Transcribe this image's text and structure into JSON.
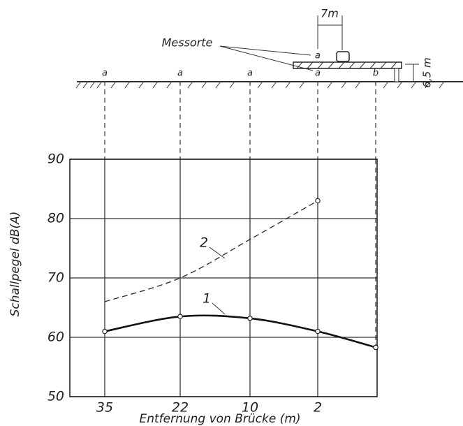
{
  "chart_data": {
    "type": "line",
    "y_label": "Schallpegel dB(A)",
    "x_label": "Entfernung von Brücke (m)",
    "categories": [
      "35",
      "22",
      "10",
      "2",
      null
    ],
    "series": [
      {
        "name": "1",
        "color": "#111111",
        "dashed": false,
        "markers": true,
        "values": [
          61,
          63.5,
          63.2,
          61,
          58.3
        ]
      },
      {
        "name": "2",
        "color": "#333333",
        "dashed": true,
        "markers": false,
        "values": [
          66,
          70,
          76.5,
          83,
          null
        ]
      }
    ],
    "ylim": [
      50,
      90
    ],
    "yticks": [
      50,
      60,
      70,
      80,
      90
    ],
    "grid": true,
    "diagram": {
      "label": "Messorte",
      "points": [
        "a",
        "a",
        "a",
        "a",
        "a",
        "b"
      ],
      "width_label": "7m",
      "height_label": "6,5 m"
    }
  }
}
